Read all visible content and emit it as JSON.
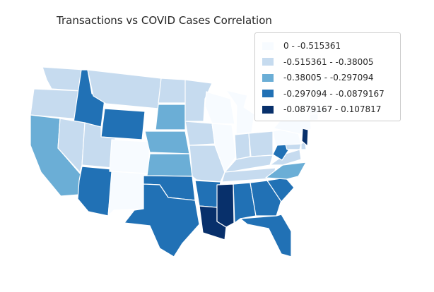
{
  "title": "Transactions vs COVID Cases Correlation",
  "legend": {
    "position": "top-right",
    "bins": [
      {
        "label": "0 - -0.515361",
        "color": "#f7fbff"
      },
      {
        "label": "-0.515361 - -0.38005",
        "color": "#c6dbef"
      },
      {
        "label": "-0.38005 - -0.297094",
        "color": "#6baed6"
      },
      {
        "label": "-0.297094 - -0.0879167",
        "color": "#2171b5"
      },
      {
        "label": "-0.0879167 - 0.107817",
        "color": "#08306b"
      }
    ]
  },
  "map": {
    "type": "choropleth",
    "region": "contiguous United States",
    "axes_visible": false,
    "states": {
      "Washington": 1,
      "Oregon": 1,
      "California": 2,
      "Idaho": 3,
      "Nevada": 1,
      "Montana": 1,
      "Wyoming": 3,
      "Utah": 1,
      "Arizona": 3,
      "Colorado": 0,
      "New Mexico": 0,
      "North Dakota": 1,
      "South Dakota": 2,
      "Nebraska": 2,
      "Kansas": 2,
      "Oklahoma": 3,
      "Texas": 3,
      "Minnesota": 1,
      "Iowa": 1,
      "Missouri": 1,
      "Arkansas": 3,
      "Louisiana": 4,
      "Wisconsin": 0,
      "Illinois": 0,
      "Michigan": 0,
      "Indiana": 1,
      "Ohio": 1,
      "Kentucky": 1,
      "Tennessee": 1,
      "Mississippi": 4,
      "Alabama": 3,
      "Georgia": 3,
      "Florida": 3,
      "South Carolina": 3,
      "North Carolina": 2,
      "Virginia": 1,
      "West Virginia": 3,
      "Pennsylvania": 0,
      "New York": 0,
      "Maryland": 1,
      "Delaware": 1,
      "New Jersey": 4,
      "Connecticut": 1,
      "Massachusetts": 1,
      "Vermont": 0,
      "New Hampshire": 0,
      "Maine": 0
    }
  }
}
